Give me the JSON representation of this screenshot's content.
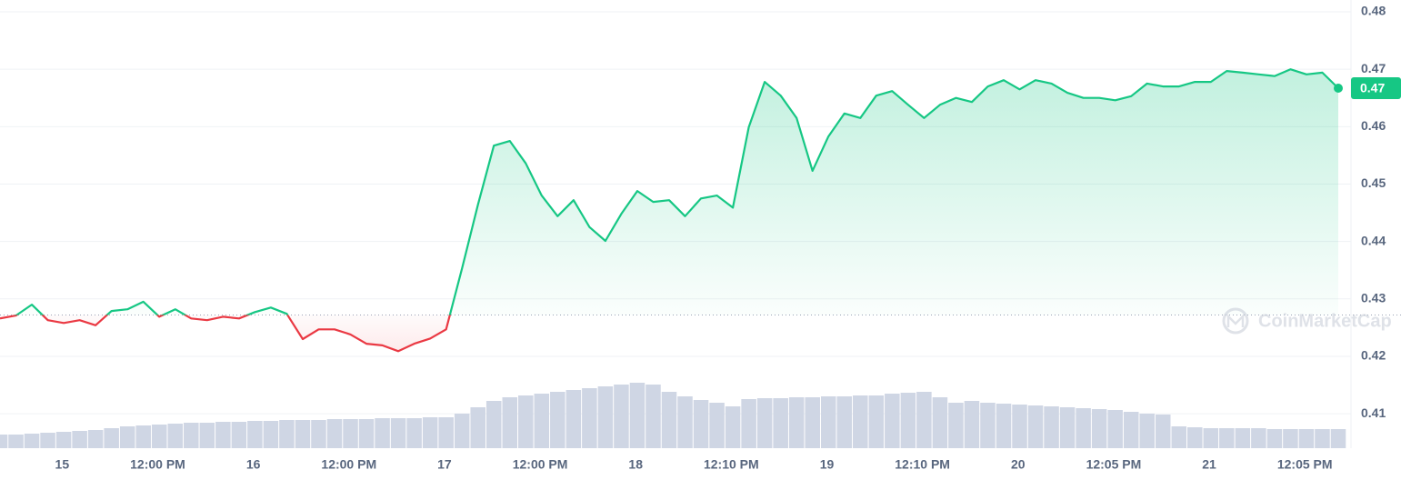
{
  "chart_data": {
    "type": "line",
    "values": [
      0.4266,
      0.4271,
      0.429,
      0.4263,
      0.4258,
      0.4263,
      0.4254,
      0.4279,
      0.4282,
      0.4295,
      0.4269,
      0.4282,
      0.4266,
      0.4263,
      0.4269,
      0.4266,
      0.4277,
      0.4285,
      0.4274,
      0.423,
      0.4247,
      0.4247,
      0.4238,
      0.4222,
      0.4219,
      0.4209,
      0.4222,
      0.4231,
      0.4247,
      0.4353,
      0.4464,
      0.4567,
      0.4575,
      0.4536,
      0.448,
      0.4444,
      0.4472,
      0.4425,
      0.4401,
      0.4448,
      0.4488,
      0.4469,
      0.4472,
      0.4444,
      0.4475,
      0.448,
      0.4459,
      0.4599,
      0.4678,
      0.4654,
      0.4615,
      0.4523,
      0.4583,
      0.4623,
      0.4615,
      0.4654,
      0.4662,
      0.4638,
      0.4615,
      0.4638,
      0.465,
      0.4643,
      0.467,
      0.4681,
      0.4665,
      0.4681,
      0.4675,
      0.4659,
      0.465,
      0.465,
      0.4646,
      0.4653,
      0.4675,
      0.467,
      0.467,
      0.4678,
      0.4678,
      0.4697,
      0.4694,
      0.4691,
      0.4688,
      0.47,
      0.4691,
      0.4694,
      0.4667
    ],
    "volume": [
      15,
      15,
      16,
      17,
      18,
      19,
      20,
      22,
      24,
      25,
      26,
      27,
      28,
      28,
      29,
      29,
      30,
      30,
      31,
      31,
      31,
      32,
      32,
      32,
      33,
      33,
      33,
      34,
      34,
      38,
      45,
      52,
      56,
      58,
      60,
      62,
      64,
      66,
      68,
      70,
      72,
      70,
      62,
      57,
      53,
      50,
      46,
      54,
      55,
      55,
      56,
      56,
      57,
      57,
      58,
      58,
      60,
      61,
      62,
      56,
      50,
      52,
      50,
      49,
      48,
      47,
      46,
      45,
      44,
      43,
      42,
      40,
      38,
      37,
      24,
      23,
      22,
      22,
      22,
      22,
      21,
      21,
      21,
      21,
      21
    ],
    "baseline": 0.4272,
    "up_color": "#16c784",
    "down_color": "#ea3943",
    "volume_color": "#cfd6e4",
    "xlim": [
      0,
      84
    ],
    "xticks": [
      {
        "value": 3.9,
        "label": "15"
      },
      {
        "value": 9.9,
        "label": "12:00 PM"
      },
      {
        "value": 15.9,
        "label": "16"
      },
      {
        "value": 21.9,
        "label": "12:00 PM"
      },
      {
        "value": 27.9,
        "label": "17"
      },
      {
        "value": 33.9,
        "label": "12:00 PM"
      },
      {
        "value": 39.9,
        "label": "18"
      },
      {
        "value": 45.9,
        "label": "12:10 PM"
      },
      {
        "value": 51.9,
        "label": "19"
      },
      {
        "value": 57.9,
        "label": "12:10 PM"
      },
      {
        "value": 63.9,
        "label": "20"
      },
      {
        "value": 69.9,
        "label": "12:05 PM"
      },
      {
        "value": 75.9,
        "label": "21"
      },
      {
        "value": 81.9,
        "label": "12:05 PM"
      }
    ],
    "ylim": [
      0.404,
      0.48
    ],
    "yticks": [
      0.41,
      0.42,
      0.43,
      0.44,
      0.45,
      0.46,
      0.47,
      0.48
    ],
    "grid": true,
    "current_price": {
      "value": 0.4667,
      "label": "0.47"
    },
    "watermark": "CoinMarketCap"
  }
}
